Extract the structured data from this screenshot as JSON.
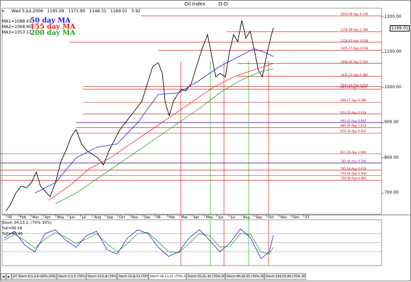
{
  "header": {
    "title": "Oil Index",
    "period": "D-D",
    "date": "Wed 5-Jul-2006",
    "open": "1165.09",
    "high": "1171.90",
    "low": "1148.31",
    "close": "1169.01",
    "change": "3.92"
  },
  "moving_averages": [
    {
      "label": "MA1",
      "value": "1088.43",
      "name": "50 day MA",
      "color": "#1a1adc"
    },
    {
      "label": "MA2",
      "value": "1068.60",
      "name": "155 day MA",
      "color": "#e02020"
    },
    {
      "label": "MA3",
      "value": "1053.11",
      "name": "200 day MA",
      "color": "#20a020"
    }
  ],
  "last_price": "1169.01",
  "price_axis": [
    "1200.00",
    "1100.00",
    "1000.00",
    "900.00",
    "800.00",
    "700.00"
  ],
  "fib_labels": [
    "1203.56 App 4.236",
    "1158.49 App 3.786",
    "1128.45 App 3.618",
    "1105.57 App 0.618",
    "1068.40 App 0.500",
    "1031.23 App 0.382",
    "1002.40 App 3.618",
    "995.23 App 1.000",
    "958.27 App 0.786",
    "924.33 App 0.618",
    "900.42 App 0.840",
    "886.29 App 1.618",
    "870.32 App 0.262",
    "811.29 App 1.000",
    "785.46 App 0.786",
    "765.18 App 0.618",
    "750.29 App 0.500",
    "736.49 App 0.382"
  ],
  "months": [
    "05",
    "Feb",
    "Mar",
    "Apr",
    "May",
    "Jun",
    "Jul",
    "Aug",
    "Sep",
    "Oct",
    "Nov",
    "Dec",
    "06",
    "Feb",
    "Mar",
    "Apr",
    "May",
    "Jun",
    "Jul",
    "Aug",
    "Sep",
    "Oct",
    "Nov",
    "Dec",
    "07"
  ],
  "stochastic": {
    "title": "Stoch 34,13,2; (70%-30%)",
    "k_label": "%K",
    "k_value": "66.18",
    "d_label": "%D",
    "d_value": "40.46"
  },
  "bottom_tabs": [
    "DT Stoch 8,5,3,0 (80%-20%) 8,5,3,0",
    "Stoch 5,3,5 (70%-30%)",
    "Stoch 13,5,8 (70%-30%)",
    "Stoch 21,8,13 (70%-30%)",
    "Stoch 34,13,21 (70%-30%)",
    "Stoch 55,21,34 (70%-30%)",
    "Stoch 89,34,55 (70%-30%)",
    "Stoch 144,55,89 (70%-30%)"
  ],
  "colors": {
    "price": "#000000",
    "ma50": "#1a1adc",
    "ma155": "#e02020",
    "ma200": "#20a020",
    "fib": "#c00000",
    "fib_purple": "#7030a0"
  }
}
